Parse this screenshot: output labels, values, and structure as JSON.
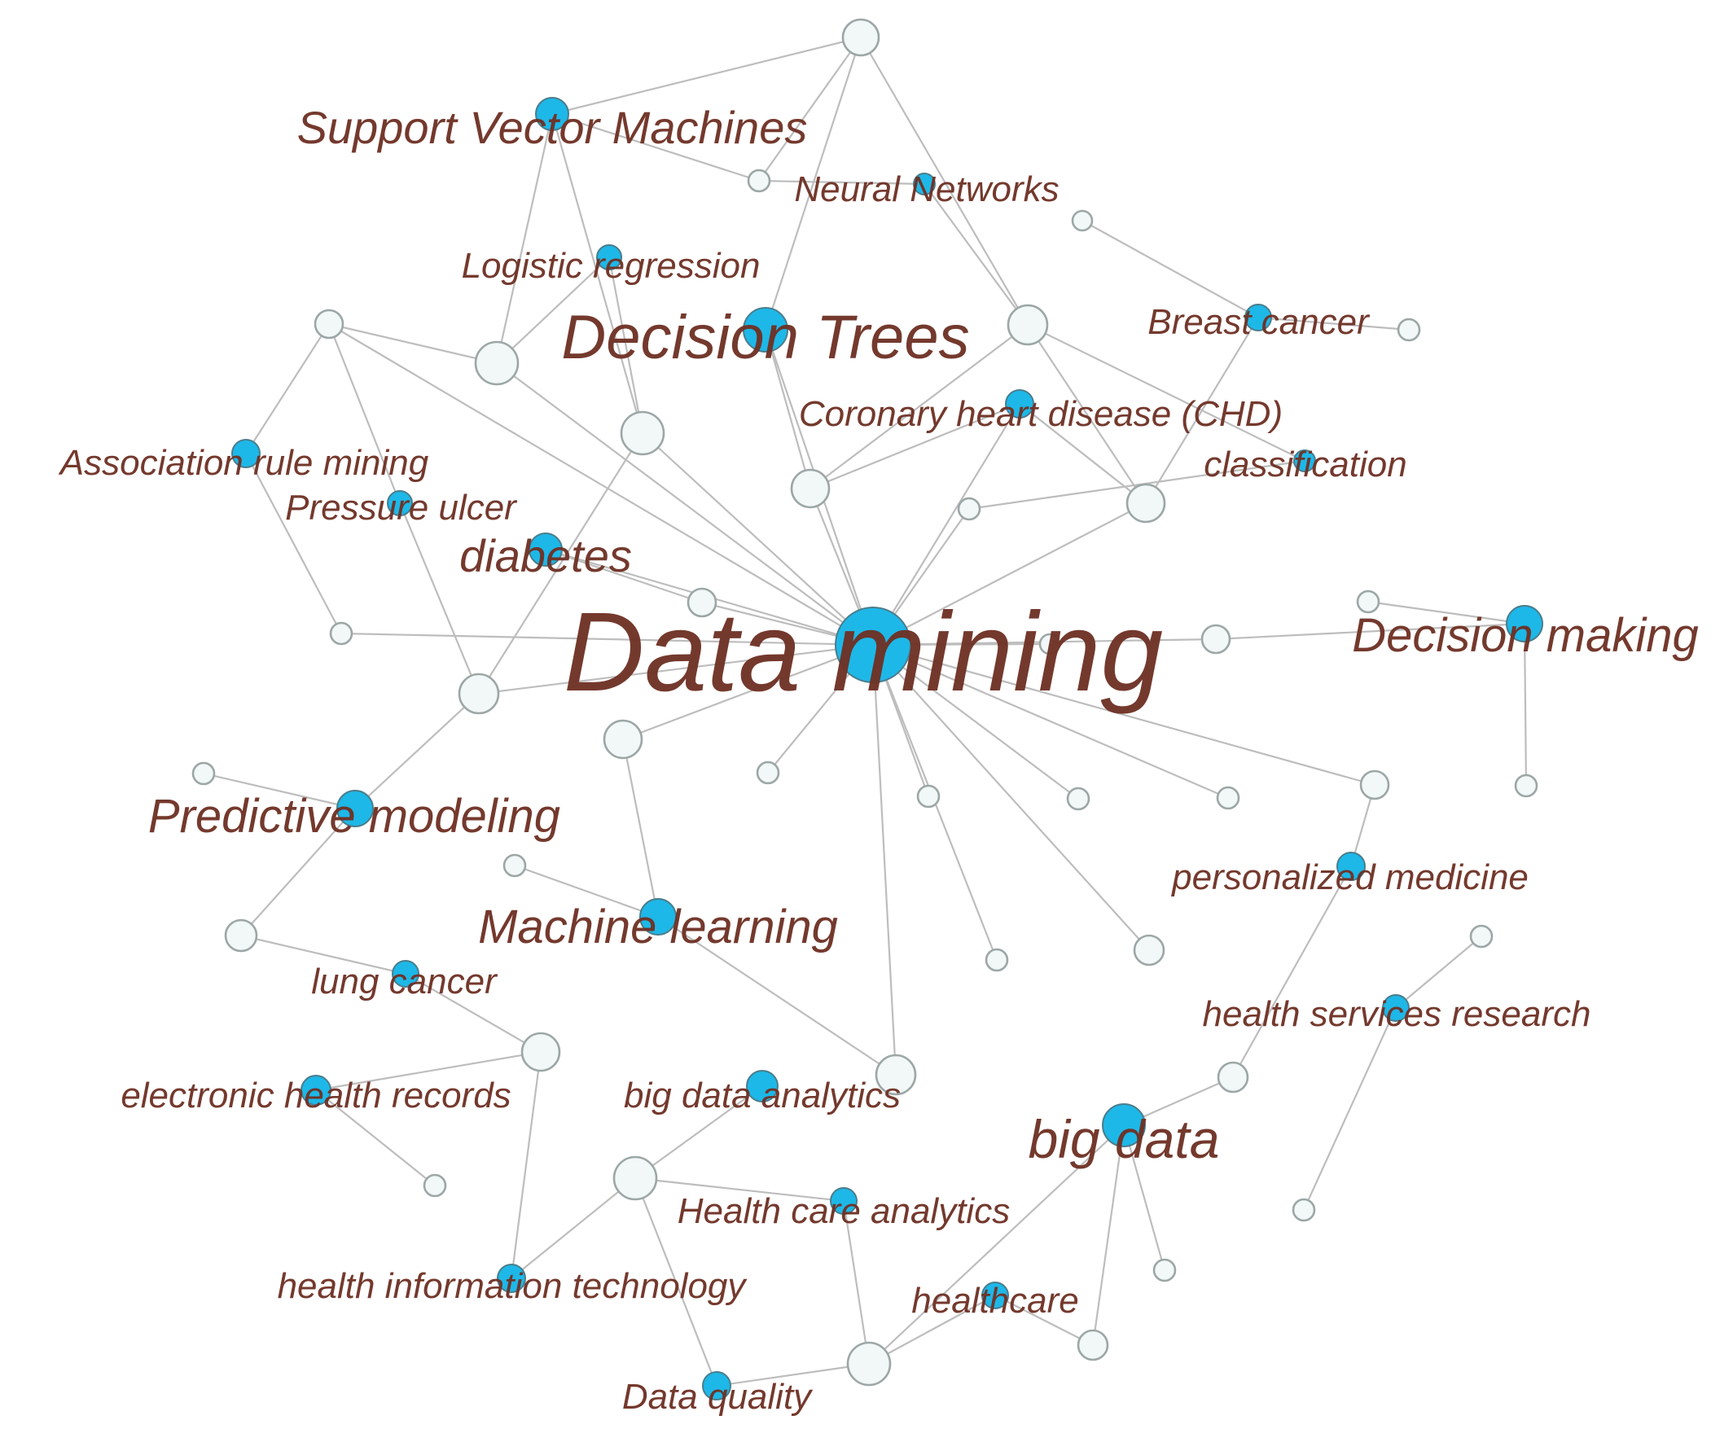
{
  "keywords": {
    "data_mining": "Data mining",
    "decision_trees": "Decision Trees",
    "support_vector_machines": "Support Vector Machines",
    "neural_networks": "Neural Networks",
    "logistic_regression": "Logistic regression",
    "breast_cancer": "Breast cancer",
    "coronary_heart_disease": "Coronary heart disease (CHD)",
    "classification": "classification",
    "association_rule_mining": "Association rule mining",
    "pressure_ulcer": "Pressure ulcer",
    "diabetes": "diabetes",
    "decision_making": "Decision making",
    "predictive_modeling": "Predictive modeling",
    "personalized_medicine": "personalized medicine",
    "machine_learning": "Machine learning",
    "lung_cancer": "lung cancer",
    "health_services_research": "health services research",
    "electronic_health_records": "electronic health records",
    "big_data_analytics": "big data analytics",
    "big_data": "big data",
    "health_care_analytics": "Health care analytics",
    "health_information_technology": "health information technology",
    "healthcare": "healthcare",
    "data_quality": "Data quality"
  },
  "colors": {
    "keyword_node": "#1db8e8",
    "linking_node": "#f2f7f7",
    "edge": "#bdbdbd",
    "label_text": "#6e3124"
  }
}
